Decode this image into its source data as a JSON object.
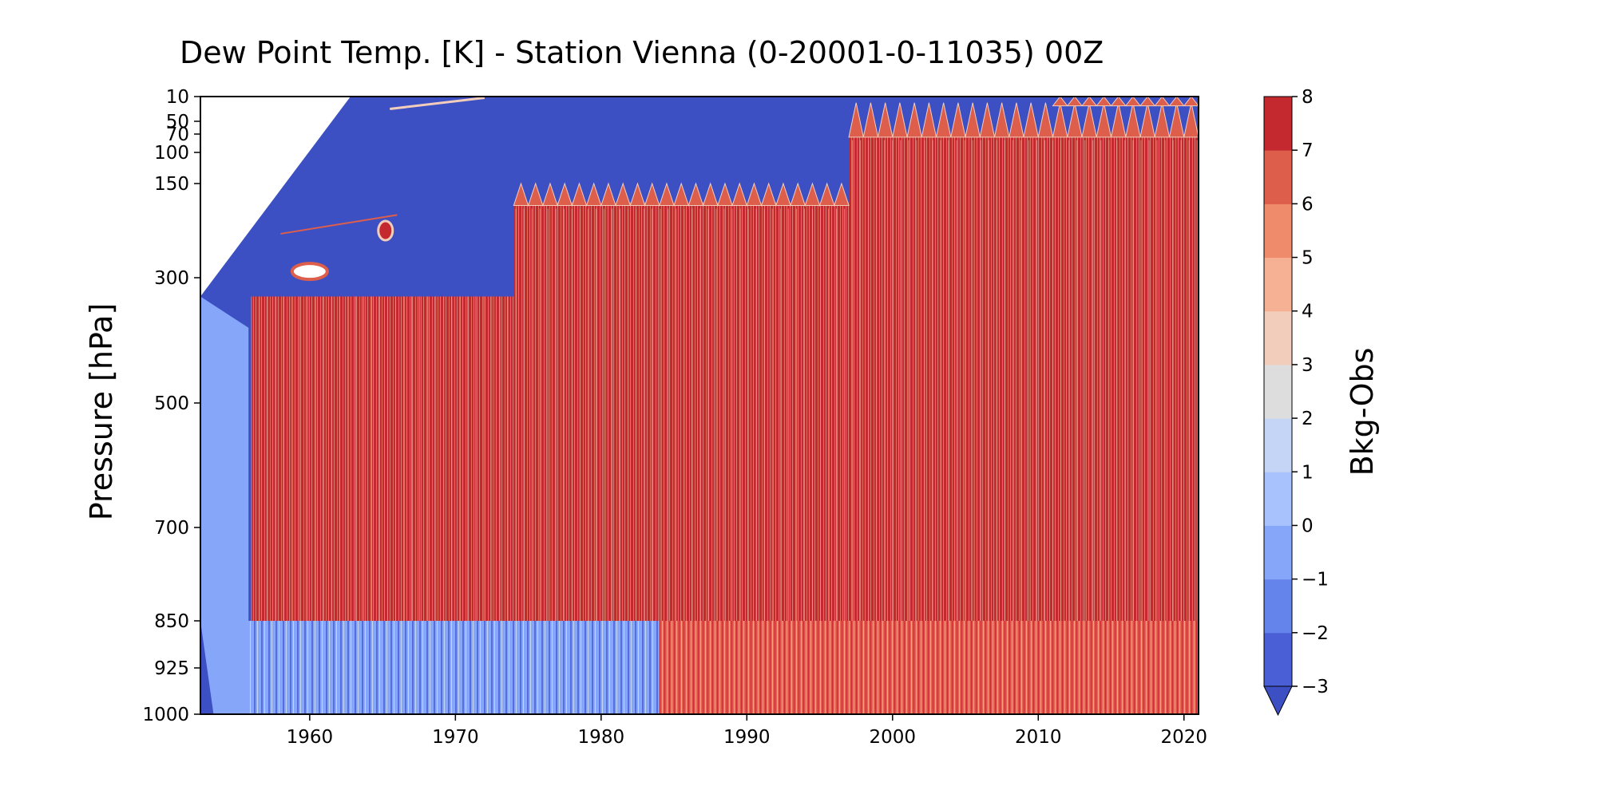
{
  "chart_data": {
    "type": "heatmap",
    "title": "Dew Point Temp. [K]   - Station Vienna (0-20001-0-11035) 00Z",
    "xlabel": "",
    "ylabel": "Pressure [hPa]",
    "x_ticks": [
      1960,
      1970,
      1980,
      1990,
      2000,
      2010,
      2020
    ],
    "xlim": [
      1952.5,
      2021
    ],
    "y_ticks": [
      10,
      50,
      70,
      100,
      150,
      300,
      500,
      700,
      850,
      925,
      1000
    ],
    "ylim": [
      1000,
      10
    ],
    "y_scale": "log-like (non-linear, inverted)",
    "colorbar": {
      "label": "Bkg-Obs",
      "levels": [
        -3,
        -2,
        -1,
        0,
        1,
        2,
        3,
        4,
        5,
        6,
        7,
        8
      ],
      "tick_labels": [
        "−3",
        "−2",
        "−1",
        "0",
        "1",
        "2",
        "3",
        "4",
        "5",
        "6",
        "7",
        "8"
      ],
      "extend": "min",
      "colors": [
        "#4a5fd6",
        "#6484ec",
        "#86a6f9",
        "#a7c2fd",
        "#c5d5f5",
        "#dddddd",
        "#f2cdbc",
        "#f6b094",
        "#ef8b6a",
        "#dc5e4b",
        "#c3292f"
      ]
    },
    "regions": [
      {
        "years": [
          1952.5,
          1956
        ],
        "pressure": [
          10,
          1000
        ],
        "value": "below -3 (mostly no data at top-left)"
      },
      {
        "years": [
          1956,
          1974
        ],
        "pressure": [
          330,
          850
        ],
        "value": 8
      },
      {
        "years": [
          1974,
          1997
        ],
        "pressure": [
          180,
          850
        ],
        "value": 8
      },
      {
        "years": [
          1997,
          2021
        ],
        "pressure": [
          70,
          850
        ],
        "value": 8
      },
      {
        "years": [
          1952.5,
          1997
        ],
        "pressure": [
          10,
          180
        ],
        "value": -3
      },
      {
        "years": [
          1956,
          1984
        ],
        "pressure": [
          850,
          1000
        ],
        "value": 0
      },
      {
        "years": [
          1984,
          2021
        ],
        "pressure": [
          850,
          1000
        ],
        "value": 4
      }
    ],
    "grid": false,
    "legend": "colorbar-right"
  }
}
